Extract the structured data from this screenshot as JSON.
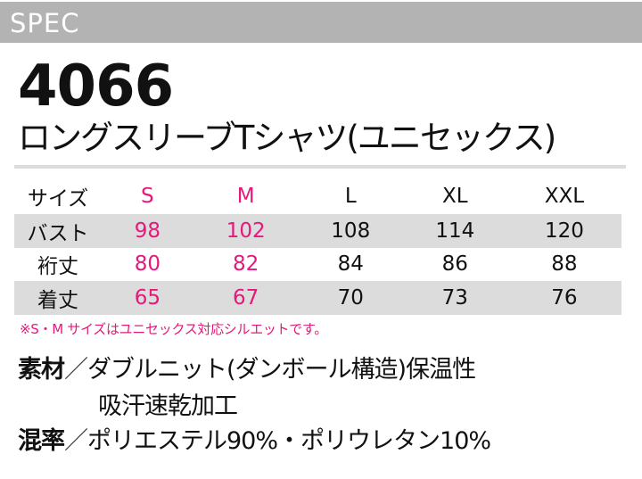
{
  "header": {
    "label": "SPEC",
    "bg_color": "#b3b3b3"
  },
  "product": {
    "model_number": "4066",
    "name": "ロングスリーブTシャツ(ユニセックス)"
  },
  "accent_color": "#e5197a",
  "size_table": {
    "row_label_header": "サイズ",
    "sizes": [
      "S",
      "M",
      "L",
      "XL",
      "XXL"
    ],
    "highlighted_sizes": [
      "S",
      "M"
    ],
    "rows": [
      {
        "label": "バスト",
        "values": [
          "98",
          "102",
          "108",
          "114",
          "120"
        ]
      },
      {
        "label": "裄丈",
        "values": [
          "80",
          "82",
          "84",
          "86",
          "88"
        ]
      },
      {
        "label": "着丈",
        "values": [
          "65",
          "67",
          "70",
          "73",
          "76"
        ]
      }
    ]
  },
  "note": "※S・M サイズはユニセックス対応シルエットです。",
  "specs": {
    "material": {
      "key": "素材",
      "separator": "／",
      "line1": "ダブルニット(ダンボール構造)保温性",
      "line2": "吸汗速乾加工"
    },
    "blend": {
      "key": "混率",
      "separator": "／",
      "value": "ポリエステル90%・ポリウレタン10%"
    }
  }
}
